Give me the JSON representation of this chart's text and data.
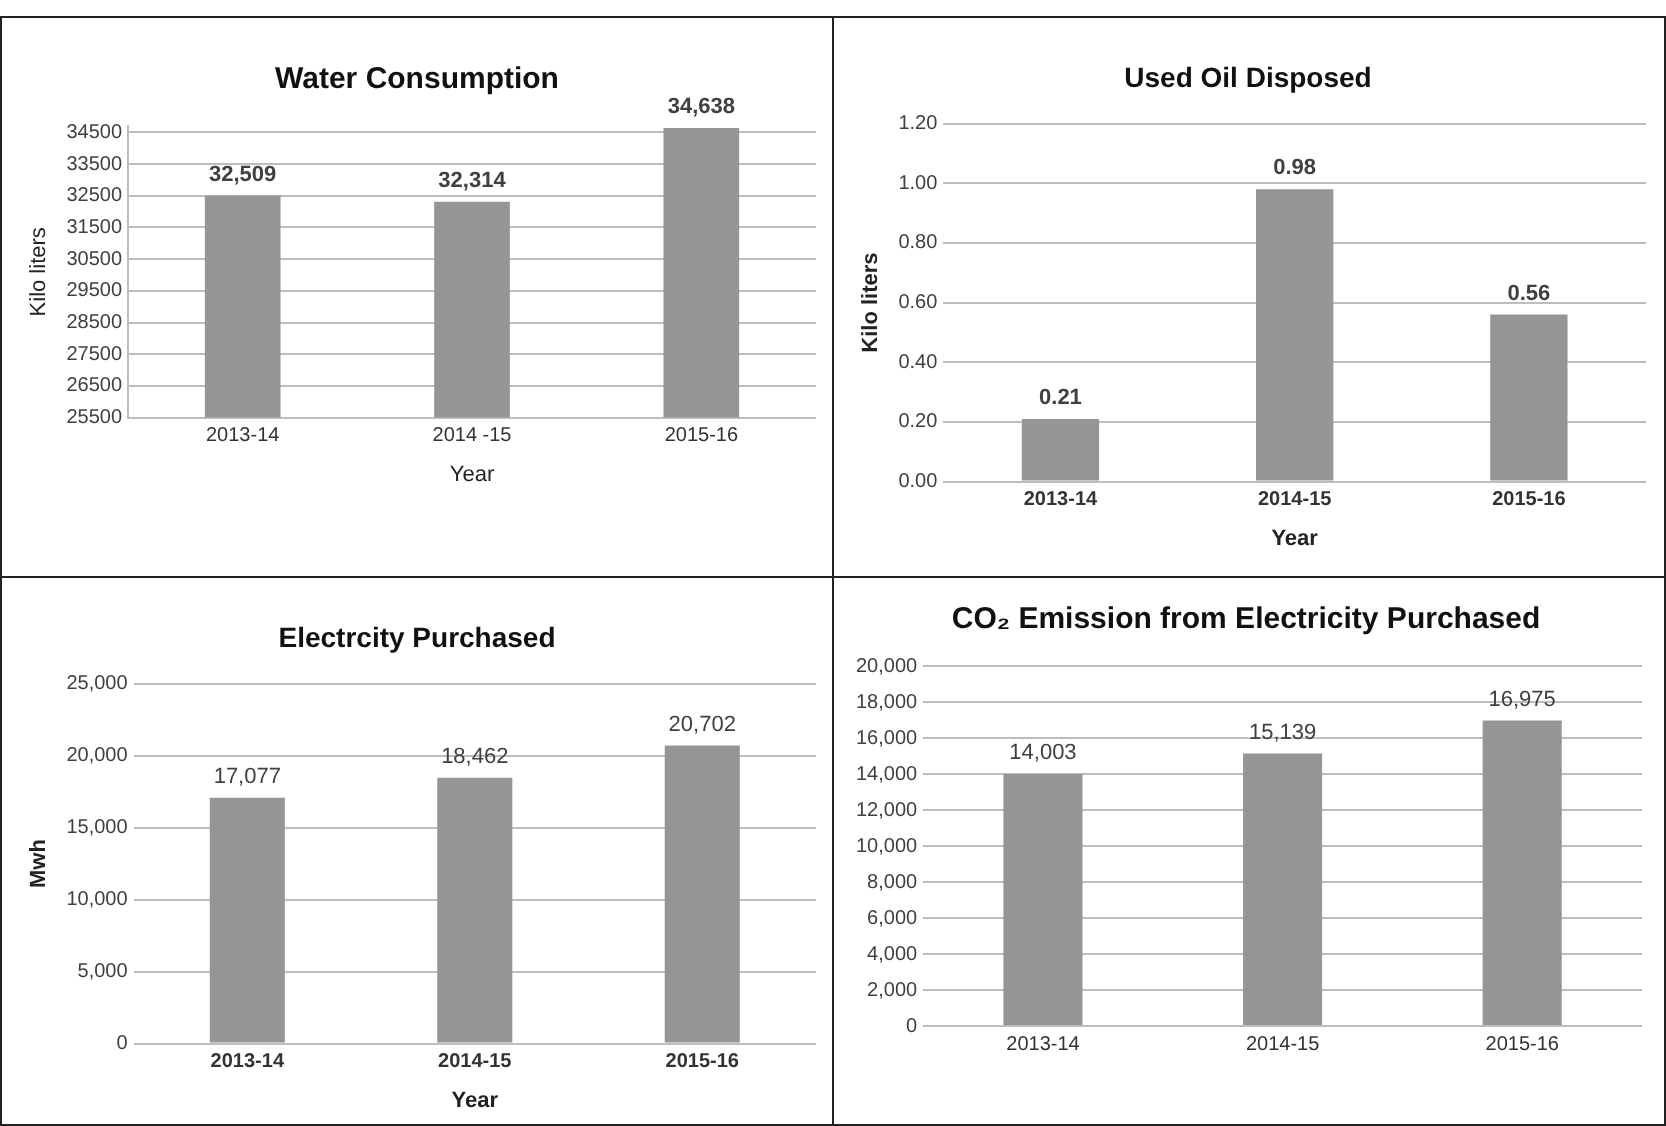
{
  "chart_data": [
    {
      "type": "bar",
      "title": "Water Consumption",
      "xlabel": "Year",
      "ylabel": "Kilo liters",
      "categories": [
        "2013-14",
        "2014 -15",
        "2015-16"
      ],
      "values": [
        32509,
        32314,
        34638
      ],
      "value_labels": [
        "32,509",
        "32,314",
        "34,638"
      ],
      "color": "#959595",
      "ylim": [
        25500,
        34700
      ],
      "yticks": [
        25500,
        26500,
        27500,
        28500,
        29500,
        30500,
        31500,
        32500,
        33500,
        34500
      ],
      "grid": "y",
      "legend": false
    },
    {
      "type": "bar",
      "title": "Used Oil Disposed",
      "xlabel": "Year",
      "ylabel": "Kilo liters",
      "categories": [
        "2013-14",
        "2014-15",
        "2015-16"
      ],
      "values": [
        0.21,
        0.98,
        0.56
      ],
      "value_labels": [
        "0.21",
        "0.98",
        "0.56"
      ],
      "color": "#959595",
      "ylim": [
        0,
        1.2
      ],
      "yticks": [
        {
          "value": 0,
          "label": "0.00"
        },
        {
          "value": 0.2,
          "label": "0.20"
        },
        {
          "value": 0.4,
          "label": "0.40"
        },
        {
          "value": 0.6,
          "label": "0.60"
        },
        {
          "value": 0.8,
          "label": "0.80"
        },
        {
          "value": 1,
          "label": "1.00"
        },
        {
          "value": 1.2,
          "label": "1.20"
        }
      ],
      "grid": "y",
      "legend": false
    },
    {
      "type": "bar",
      "title": "Electrcity Purchased",
      "xlabel": "Year",
      "ylabel": "Mwh",
      "categories": [
        "2013-14",
        "2014-15",
        "2015-16"
      ],
      "values": [
        17077,
        18462,
        20702
      ],
      "value_labels": [
        "17,077",
        "18,462",
        "20,702"
      ],
      "color": "#959595",
      "ylim": [
        0,
        25000
      ],
      "yticks": [
        0,
        {
          "value": 5000,
          "label": "5,000"
        },
        {
          "value": 10000,
          "label": "10,000"
        },
        {
          "value": 15000,
          "label": "15,000"
        },
        {
          "value": 20000,
          "label": "20,000"
        },
        {
          "value": 25000,
          "label": "25,000"
        }
      ],
      "grid": "y",
      "legend": false
    },
    {
      "type": "bar",
      "title": "CO₂ Emission from Electricity Purchased",
      "categories": [
        "2013-14",
        "2014-15",
        "2015-16"
      ],
      "values": [
        14003,
        15139,
        16975
      ],
      "value_labels": [
        "14,003",
        "15,139",
        "16,975"
      ],
      "color": "#959595",
      "ylim": [
        0,
        20000
      ],
      "yticks": [
        0,
        {
          "value": 2000,
          "label": "2,000"
        },
        {
          "value": 4000,
          "label": "4,000"
        },
        {
          "value": 6000,
          "label": "6,000"
        },
        {
          "value": 8000,
          "label": "8,000"
        },
        {
          "value": 10000,
          "label": "10,000"
        },
        {
          "value": 12000,
          "label": "12,000"
        },
        {
          "value": 14000,
          "label": "14,000"
        },
        {
          "value": 16000,
          "label": "16,000"
        },
        {
          "value": 18000,
          "label": "18,000"
        },
        {
          "value": 20000,
          "label": "20,000"
        }
      ],
      "grid": "y",
      "legend": false
    }
  ]
}
